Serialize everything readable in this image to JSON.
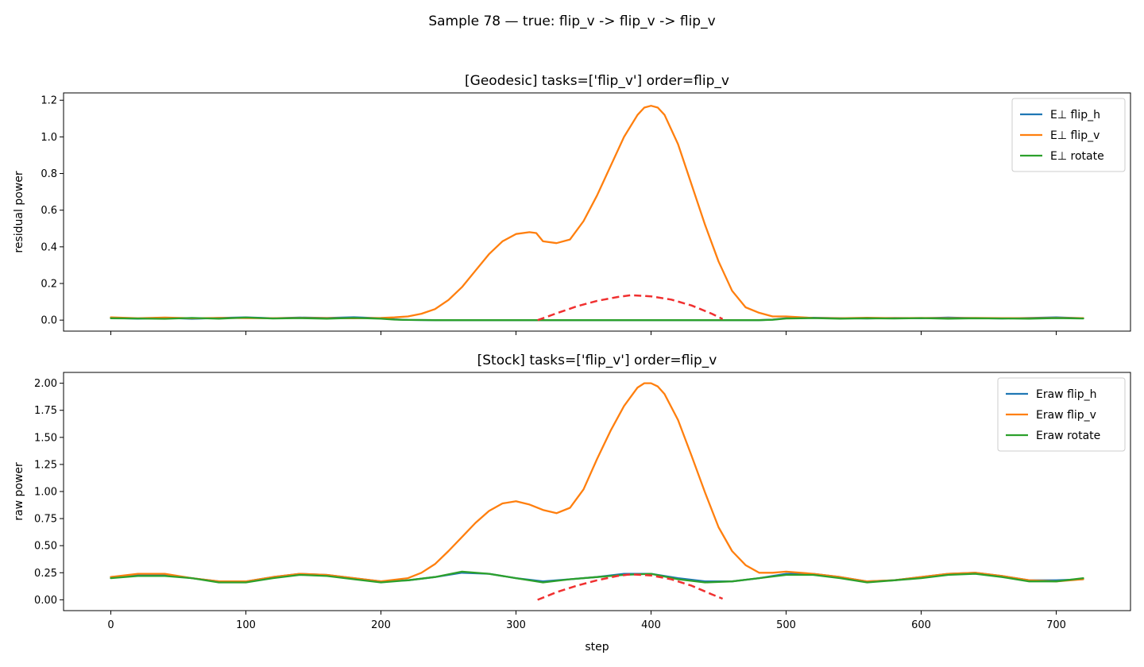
{
  "figure": {
    "suptitle": "Sample 78 — true: flip_v -> flip_v -> flip_v"
  },
  "chart_data": [
    {
      "type": "line",
      "title": "[Geodesic] tasks=['flip_v'] order=flip_v",
      "xlabel": "",
      "ylabel": "residual power",
      "xlim": [
        -35,
        755
      ],
      "ylim": [
        -0.06,
        1.24
      ],
      "xticks": [
        0,
        100,
        200,
        300,
        400,
        500,
        600,
        700
      ],
      "yticks": [
        0.0,
        0.2,
        0.4,
        0.6,
        0.8,
        1.0,
        1.2
      ],
      "ytick_decimals": 1,
      "show_xtick_labels": false,
      "legend_position": "top-right",
      "grid": false,
      "series": [
        {
          "name": "E⊥ flip_h",
          "color": "#1f77b4",
          "style": "solid",
          "x": [
            0,
            20,
            40,
            60,
            80,
            100,
            120,
            140,
            160,
            180,
            200,
            210,
            220,
            240,
            260,
            280,
            300,
            320,
            340,
            360,
            380,
            400,
            420,
            440,
            460,
            480,
            490,
            500,
            520,
            540,
            560,
            580,
            600,
            620,
            640,
            660,
            680,
            700,
            720
          ],
          "y": [
            0.012,
            0.008,
            0.013,
            0.007,
            0.012,
            0.015,
            0.01,
            0.014,
            0.012,
            0.016,
            0.01,
            0.004,
            0.001,
            0.0,
            0.0,
            0.0,
            0.0,
            0.0,
            0.0,
            0.0,
            0.0,
            0.0,
            0.0,
            0.0,
            0.0,
            0.0,
            0.003,
            0.01,
            0.013,
            0.011,
            0.009,
            0.012,
            0.01,
            0.014,
            0.011,
            0.009,
            0.012,
            0.015,
            0.01
          ]
        },
        {
          "name": "E⊥ flip_v",
          "color": "#ff7f0e",
          "style": "solid",
          "x": [
            0,
            20,
            40,
            60,
            80,
            100,
            120,
            140,
            160,
            180,
            200,
            210,
            220,
            230,
            240,
            250,
            260,
            270,
            280,
            290,
            300,
            310,
            315,
            320,
            330,
            340,
            350,
            360,
            370,
            380,
            390,
            395,
            400,
            405,
            410,
            420,
            430,
            440,
            450,
            460,
            470,
            480,
            490,
            500,
            520,
            540,
            560,
            580,
            600,
            620,
            640,
            660,
            680,
            700,
            720
          ],
          "y": [
            0.015,
            0.01,
            0.014,
            0.01,
            0.012,
            0.011,
            0.01,
            0.012,
            0.011,
            0.01,
            0.012,
            0.015,
            0.02,
            0.035,
            0.06,
            0.11,
            0.18,
            0.27,
            0.36,
            0.43,
            0.47,
            0.48,
            0.475,
            0.43,
            0.42,
            0.44,
            0.54,
            0.68,
            0.84,
            1.0,
            1.12,
            1.16,
            1.17,
            1.16,
            1.12,
            0.96,
            0.74,
            0.52,
            0.32,
            0.16,
            0.07,
            0.04,
            0.02,
            0.02,
            0.012,
            0.01,
            0.013,
            0.011,
            0.012,
            0.01,
            0.012,
            0.011,
            0.01,
            0.012,
            0.011
          ]
        },
        {
          "name": "E⊥ rotate",
          "color": "#2ca02c",
          "style": "solid",
          "x": [
            0,
            20,
            40,
            60,
            80,
            100,
            120,
            140,
            160,
            180,
            200,
            210,
            220,
            240,
            260,
            280,
            300,
            320,
            340,
            360,
            380,
            400,
            420,
            440,
            460,
            480,
            490,
            500,
            520,
            540,
            560,
            580,
            600,
            620,
            640,
            660,
            680,
            700,
            720
          ],
          "y": [
            0.01,
            0.009,
            0.007,
            0.012,
            0.008,
            0.014,
            0.009,
            0.011,
            0.008,
            0.012,
            0.008,
            0.003,
            0.001,
            0.0,
            0.0,
            0.0,
            0.0,
            0.0,
            0.0,
            0.0,
            0.0,
            0.0,
            0.0,
            0.0,
            0.0,
            0.0,
            0.002,
            0.009,
            0.011,
            0.008,
            0.01,
            0.009,
            0.011,
            0.008,
            0.01,
            0.009,
            0.008,
            0.011,
            0.009
          ]
        },
        {
          "name": "",
          "color": "#f03030",
          "style": "dashed",
          "x": [
            316,
            330,
            345,
            360,
            375,
            385,
            400,
            415,
            430,
            445,
            453
          ],
          "y": [
            0.0,
            0.037,
            0.075,
            0.105,
            0.126,
            0.136,
            0.13,
            0.112,
            0.08,
            0.035,
            0.006
          ]
        }
      ]
    },
    {
      "type": "line",
      "title": "[Stock] tasks=['flip_v'] order=flip_v",
      "xlabel": "step",
      "ylabel": "raw power",
      "xlim": [
        -35,
        755
      ],
      "ylim": [
        -0.1,
        2.1
      ],
      "xticks": [
        0,
        100,
        200,
        300,
        400,
        500,
        600,
        700
      ],
      "yticks": [
        0.0,
        0.25,
        0.5,
        0.75,
        1.0,
        1.25,
        1.5,
        1.75,
        2.0
      ],
      "ytick_decimals": 2,
      "show_xtick_labels": true,
      "legend_position": "top-right",
      "grid": false,
      "series": [
        {
          "name": "Eraw flip_h",
          "color": "#1f77b4",
          "style": "solid",
          "x": [
            0,
            20,
            40,
            60,
            80,
            100,
            120,
            140,
            160,
            180,
            200,
            220,
            240,
            260,
            280,
            300,
            320,
            340,
            360,
            380,
            400,
            420,
            440,
            460,
            480,
            500,
            520,
            540,
            560,
            580,
            600,
            620,
            640,
            660,
            680,
            700,
            720
          ],
          "y": [
            0.21,
            0.23,
            0.23,
            0.2,
            0.17,
            0.17,
            0.21,
            0.24,
            0.23,
            0.2,
            0.17,
            0.18,
            0.21,
            0.25,
            0.24,
            0.2,
            0.17,
            0.19,
            0.21,
            0.24,
            0.24,
            0.2,
            0.17,
            0.17,
            0.2,
            0.24,
            0.24,
            0.21,
            0.17,
            0.18,
            0.21,
            0.24,
            0.25,
            0.22,
            0.18,
            0.18,
            0.19
          ]
        },
        {
          "name": "Eraw flip_v",
          "color": "#ff7f0e",
          "style": "solid",
          "x": [
            0,
            20,
            40,
            60,
            80,
            100,
            120,
            140,
            160,
            180,
            200,
            220,
            230,
            240,
            250,
            260,
            270,
            280,
            290,
            300,
            310,
            320,
            330,
            340,
            350,
            360,
            370,
            380,
            390,
            395,
            400,
            405,
            410,
            420,
            430,
            440,
            450,
            460,
            470,
            480,
            490,
            500,
            520,
            540,
            560,
            580,
            600,
            620,
            640,
            660,
            680,
            700,
            720
          ],
          "y": [
            0.21,
            0.24,
            0.24,
            0.2,
            0.17,
            0.17,
            0.21,
            0.24,
            0.23,
            0.2,
            0.17,
            0.2,
            0.25,
            0.33,
            0.45,
            0.58,
            0.71,
            0.82,
            0.89,
            0.91,
            0.88,
            0.83,
            0.8,
            0.85,
            1.02,
            1.3,
            1.56,
            1.79,
            1.96,
            2.0,
            2.0,
            1.97,
            1.9,
            1.66,
            1.33,
            0.99,
            0.67,
            0.45,
            0.32,
            0.25,
            0.25,
            0.26,
            0.24,
            0.21,
            0.17,
            0.18,
            0.21,
            0.24,
            0.25,
            0.22,
            0.18,
            0.17,
            0.19
          ]
        },
        {
          "name": "Eraw rotate",
          "color": "#2ca02c",
          "style": "solid",
          "x": [
            0,
            20,
            40,
            60,
            80,
            100,
            120,
            140,
            160,
            180,
            200,
            220,
            240,
            260,
            280,
            300,
            320,
            340,
            360,
            380,
            400,
            420,
            440,
            460,
            480,
            500,
            520,
            540,
            560,
            580,
            600,
            620,
            640,
            660,
            680,
            700,
            720
          ],
          "y": [
            0.2,
            0.22,
            0.22,
            0.2,
            0.16,
            0.16,
            0.2,
            0.23,
            0.22,
            0.19,
            0.16,
            0.18,
            0.21,
            0.26,
            0.24,
            0.2,
            0.16,
            0.19,
            0.21,
            0.23,
            0.24,
            0.19,
            0.16,
            0.17,
            0.2,
            0.23,
            0.23,
            0.2,
            0.16,
            0.18,
            0.2,
            0.23,
            0.24,
            0.21,
            0.17,
            0.17,
            0.2
          ]
        },
        {
          "name": "",
          "color": "#f03030",
          "style": "dashed",
          "x": [
            316,
            330,
            345,
            360,
            375,
            385,
            400,
            415,
            430,
            445,
            453
          ],
          "y": [
            0.0,
            0.07,
            0.13,
            0.18,
            0.22,
            0.235,
            0.225,
            0.19,
            0.13,
            0.05,
            0.01
          ]
        }
      ]
    }
  ]
}
